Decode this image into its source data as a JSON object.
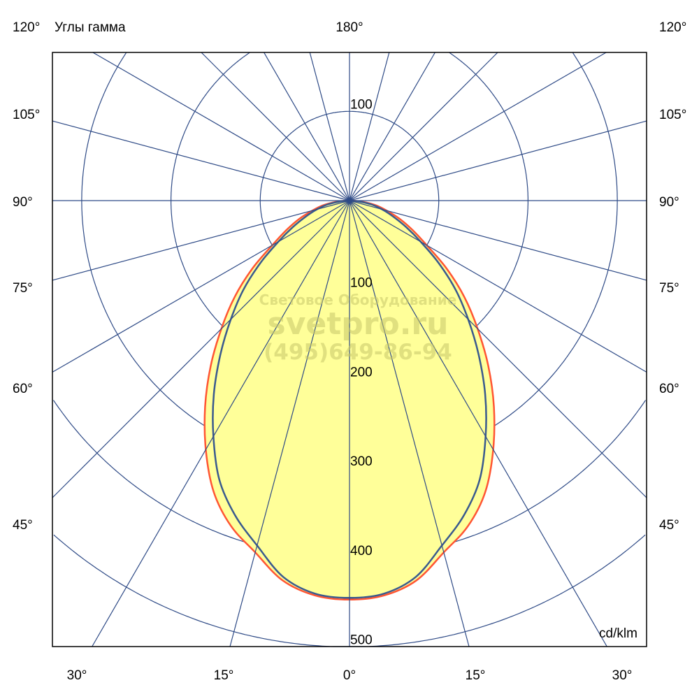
{
  "chart_data": {
    "type": "polar",
    "title": "Углы гамма",
    "unit": "cd/klm",
    "radial_ticks": [
      100,
      200,
      300,
      400,
      500
    ],
    "radial_step": 100,
    "angle_step_deg": 15,
    "angle_labels": {
      "top": "180°",
      "left": [
        "120°",
        "105°",
        "90°",
        "75°",
        "60°",
        "45°"
      ],
      "right": [
        "120°",
        "105°",
        "90°",
        "75°",
        "60°",
        "45°"
      ],
      "bottom": [
        "30°",
        "15°",
        "0°",
        "15°",
        "30°"
      ]
    },
    "gamma_deg": [
      0,
      5,
      10,
      15,
      20,
      25,
      30,
      35,
      40,
      45,
      50,
      55,
      60,
      65,
      70,
      75,
      80,
      85,
      90
    ],
    "series": [
      {
        "color": "#FF5533",
        "values": [
          447,
          444,
          432,
          408,
          388,
          360,
          322,
          282,
          242,
          203,
          168,
          133,
          100,
          78,
          60,
          43,
          30,
          15,
          3
        ]
      },
      {
        "color": "#3A5A8E",
        "values": [
          445,
          442,
          428,
          400,
          375,
          345,
          305,
          265,
          225,
          188,
          155,
          122,
          92,
          70,
          52,
          38,
          25,
          10,
          0
        ]
      }
    ],
    "fill_color": "#FFFF99",
    "grid_color": "#2E4A86",
    "grid": true
  },
  "watermark": {
    "line1": "Световое Оборудование",
    "line2": "svetpro.ru",
    "line3": "(495)649-86-94"
  }
}
